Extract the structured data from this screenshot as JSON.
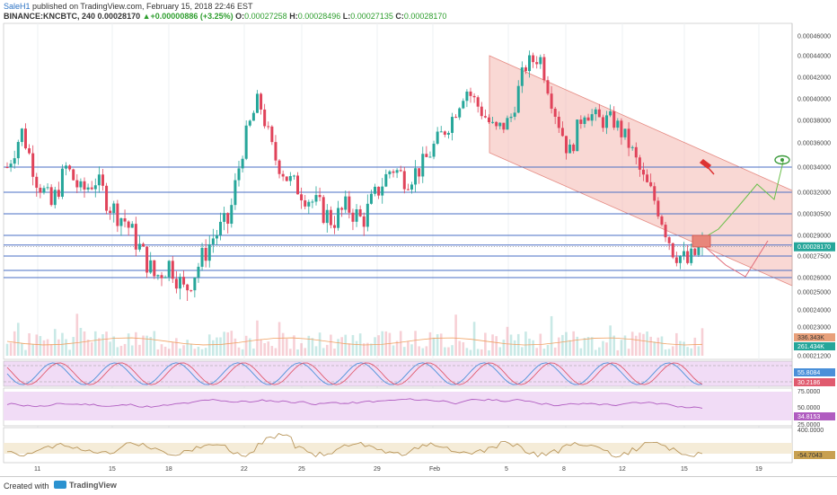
{
  "header": {
    "author": "SaleH1",
    "published": " published on TradingView.com, February 15, 2018 22:46 EST",
    "symbol": "BINANCE:KNCBTC, 240",
    "last": "0.00028170",
    "change_glyph": "▲",
    "change": "+0.00000886 (+3.25%)",
    "o_label": "O:",
    "o_value": "0.00027258",
    "h_label": "H:",
    "h_value": "0.00028496",
    "l_label": "L:",
    "l_value": "0.00027135",
    "c_label": "C:",
    "c_value": "0.00028170"
  },
  "footer": {
    "created_with": "Created with",
    "brand": "TradingView"
  },
  "colors": {
    "up": "#26a69a",
    "down": "#e0435a",
    "level": "#4a6fc4",
    "channel": "#f4b8b0",
    "stoch_k": "#4a90d9",
    "stoch_d": "#e05a6e",
    "rsi": "#b05cc0",
    "cci": "#b8955a"
  },
  "chart_data": [
    {
      "type": "candlestick",
      "panel": "price",
      "y_tick_labels": [
        "0.00046000",
        "0.00044000",
        "0.00042000",
        "0.00040000",
        "0.00038000",
        "0.00036000",
        "0.00034000",
        "0.00032000",
        "0.00030500",
        "0.00029000",
        "0.00027500",
        "0.00026000",
        "0.00025000",
        "0.00024000",
        "0.00023000",
        "0.00022000",
        "0.00021200"
      ],
      "y_ticks": [
        0.00046,
        0.00044,
        0.00042,
        0.0004,
        0.00038,
        0.00036,
        0.00034,
        0.00032,
        0.000305,
        0.00029,
        0.000275,
        0.00026,
        0.00025,
        0.00024,
        0.00023,
        0.00022,
        0.000212
      ],
      "x_tick_labels": [
        "11",
        "15",
        "18",
        "22",
        "25",
        "29",
        "Feb",
        "5",
        "8",
        "12",
        "15",
        "19"
      ],
      "last_price_label": "0.00028170",
      "horizontal_levels": [
        0.00034,
        0.00032,
        0.000305,
        0.00029,
        0.000283,
        0.000275,
        0.000265,
        0.00026
      ],
      "volume_labels": [
        "336.343K",
        "261.434K"
      ],
      "close_path": [
        0.00034,
        0.00037,
        0.00033,
        0.00031,
        0.00034,
        0.00032,
        0.00033,
        0.00031,
        0.0003,
        0.00028,
        0.00026,
        0.00027,
        0.00025,
        0.00027,
        0.00029,
        0.0003,
        0.00036,
        0.0004,
        0.00035,
        0.00033,
        0.00032,
        0.00031,
        0.0003,
        0.00031,
        0.0003,
        0.00032,
        0.00034,
        0.00033,
        0.00034,
        0.00036,
        0.00038,
        0.00041,
        0.00039,
        0.00037,
        0.00038,
        0.00043,
        0.00044,
        0.00039,
        0.00035,
        0.00039,
        0.00038,
        0.00038,
        0.00036,
        0.00033,
        0.00031,
        0.00028,
        0.00027,
        0.000282
      ]
    },
    {
      "type": "line",
      "panel": "stochastic",
      "value_labels": [
        "55.8084",
        "30.2186"
      ],
      "k_last": 55.8084,
      "d_last": 30.2186
    },
    {
      "type": "line",
      "panel": "rsi",
      "tick_labels": [
        "75.0000",
        "50.0000",
        "25.0000"
      ],
      "value_label": "34.8153",
      "last": 34.8153
    },
    {
      "type": "line",
      "panel": "cci",
      "tick_labels": [
        "400.0000"
      ],
      "value_label": "-54.7043",
      "last": -54.7043
    }
  ]
}
